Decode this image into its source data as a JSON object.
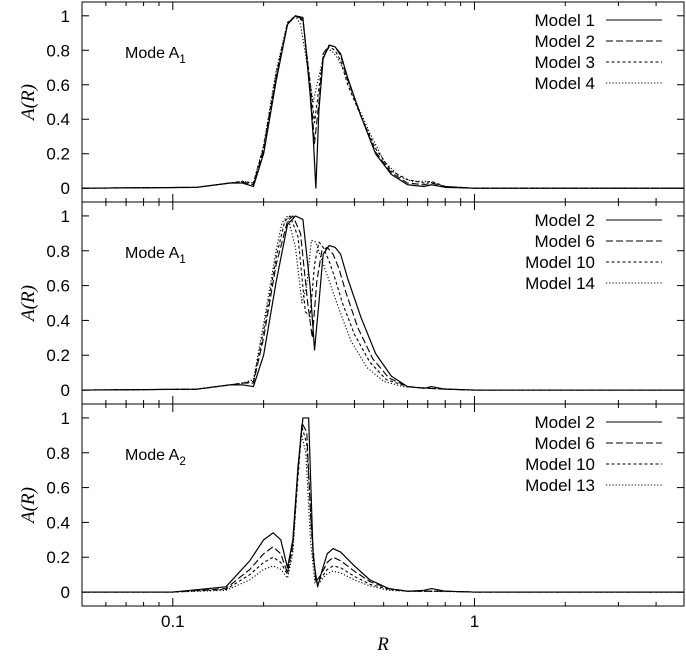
{
  "chart_data": {
    "type": "line",
    "xscale": "log",
    "xlim": [
      0.05,
      4.95
    ],
    "xticks": [
      {
        "value": 0.1,
        "label": "0.1"
      },
      {
        "value": 1,
        "label": "1"
      }
    ],
    "xlabel": "R",
    "ylabel": "A(R)",
    "yticks": [
      0,
      0.2,
      0.4,
      0.6,
      0.8,
      1
    ],
    "ytick_labels": [
      "0",
      "0.2",
      "0.4",
      "0.6",
      "0.8",
      "1"
    ],
    "panels": [
      {
        "label": "Mode A",
        "label_sub": "1",
        "ylim": [
          -0.08,
          1.08
        ],
        "series": [
          {
            "name": "Model 1",
            "style": "solid",
            "x": [
              0.05,
              0.12,
              0.155,
              0.17,
              0.185,
              0.2,
              0.22,
              0.24,
              0.255,
              0.27,
              0.285,
              0.292,
              0.298,
              0.305,
              0.315,
              0.33,
              0.345,
              0.36,
              0.38,
              0.42,
              0.47,
              0.53,
              0.6,
              0.68,
              0.72,
              0.8,
              1.0,
              4.95
            ],
            "y": [
              0,
              0.005,
              0.03,
              0.03,
              0.01,
              0.2,
              0.62,
              0.95,
              1.0,
              0.99,
              0.55,
              0.3,
              0.0,
              0.45,
              0.75,
              0.83,
              0.82,
              0.78,
              0.64,
              0.42,
              0.2,
              0.08,
              0.02,
              0.01,
              0.02,
              0.005,
              0.0,
              0
            ]
          },
          {
            "name": "Model 2",
            "style": "dashed",
            "x": [
              0.05,
              0.12,
              0.155,
              0.17,
              0.185,
              0.2,
              0.22,
              0.24,
              0.255,
              0.27,
              0.285,
              0.295,
              0.305,
              0.315,
              0.33,
              0.345,
              0.36,
              0.38,
              0.42,
              0.47,
              0.53,
              0.6,
              0.68,
              0.72,
              0.8,
              1.0,
              4.95
            ],
            "y": [
              0,
              0.005,
              0.03,
              0.035,
              0.02,
              0.22,
              0.64,
              0.95,
              1.0,
              0.98,
              0.6,
              0.26,
              0.5,
              0.78,
              0.83,
              0.82,
              0.77,
              0.63,
              0.42,
              0.21,
              0.09,
              0.03,
              0.02,
              0.03,
              0.01,
              0.0,
              0
            ]
          },
          {
            "name": "Model 3",
            "style": "fine-dashed",
            "x": [
              0.05,
              0.12,
              0.155,
              0.17,
              0.185,
              0.2,
              0.22,
              0.24,
              0.255,
              0.27,
              0.285,
              0.295,
              0.305,
              0.315,
              0.33,
              0.345,
              0.36,
              0.38,
              0.42,
              0.47,
              0.53,
              0.6,
              0.68,
              0.72,
              0.8,
              1.0,
              4.95
            ],
            "y": [
              0,
              0.005,
              0.03,
              0.04,
              0.03,
              0.24,
              0.66,
              0.96,
              1.0,
              0.97,
              0.62,
              0.38,
              0.58,
              0.76,
              0.82,
              0.8,
              0.74,
              0.6,
              0.42,
              0.23,
              0.1,
              0.05,
              0.03,
              0.04,
              0.01,
              0.0,
              0
            ]
          },
          {
            "name": "Model 4",
            "style": "dotted",
            "x": [
              0.05,
              0.12,
              0.155,
              0.17,
              0.185,
              0.2,
              0.22,
              0.24,
              0.255,
              0.265,
              0.28,
              0.292,
              0.305,
              0.32,
              0.335,
              0.35,
              0.37,
              0.4,
              0.45,
              0.5,
              0.56,
              0.62,
              0.7,
              0.8,
              1.0,
              4.95
            ],
            "y": [
              0,
              0.005,
              0.03,
              0.04,
              0.03,
              0.25,
              0.68,
              0.96,
              1.0,
              0.95,
              0.7,
              0.5,
              0.65,
              0.8,
              0.8,
              0.76,
              0.68,
              0.52,
              0.32,
              0.16,
              0.07,
              0.04,
              0.04,
              0.01,
              0.0,
              0
            ]
          }
        ]
      },
      {
        "label": "Mode A",
        "label_sub": "1",
        "ylim": [
          -0.08,
          1.08
        ],
        "series": [
          {
            "name": "Model 2",
            "style": "solid",
            "x": [
              0.05,
              0.12,
              0.155,
              0.17,
              0.185,
              0.2,
              0.22,
              0.24,
              0.255,
              0.27,
              0.285,
              0.295,
              0.305,
              0.315,
              0.33,
              0.345,
              0.36,
              0.38,
              0.42,
              0.47,
              0.53,
              0.6,
              0.68,
              0.72,
              0.8,
              1.0,
              4.95
            ],
            "y": [
              0,
              0.005,
              0.03,
              0.03,
              0.02,
              0.2,
              0.62,
              0.95,
              1.0,
              0.98,
              0.6,
              0.23,
              0.5,
              0.78,
              0.83,
              0.82,
              0.78,
              0.64,
              0.42,
              0.21,
              0.08,
              0.02,
              0.01,
              0.02,
              0.005,
              0.0,
              0
            ]
          },
          {
            "name": "Model 6",
            "style": "dashed",
            "x": [
              0.05,
              0.12,
              0.155,
              0.17,
              0.185,
              0.2,
              0.22,
              0.24,
              0.25,
              0.265,
              0.28,
              0.29,
              0.3,
              0.312,
              0.325,
              0.34,
              0.355,
              0.375,
              0.41,
              0.46,
              0.52,
              0.6,
              0.7,
              0.8,
              1.0,
              4.95
            ],
            "y": [
              0,
              0.005,
              0.03,
              0.04,
              0.04,
              0.3,
              0.72,
              0.97,
              1.0,
              0.9,
              0.5,
              0.3,
              0.62,
              0.8,
              0.82,
              0.78,
              0.7,
              0.56,
              0.36,
              0.18,
              0.07,
              0.02,
              0.01,
              0.005,
              0.0,
              0
            ]
          },
          {
            "name": "Model 10",
            "style": "fine-dashed",
            "x": [
              0.05,
              0.12,
              0.155,
              0.17,
              0.185,
              0.2,
              0.22,
              0.235,
              0.245,
              0.26,
              0.275,
              0.285,
              0.295,
              0.305,
              0.315,
              0.33,
              0.345,
              0.365,
              0.4,
              0.45,
              0.51,
              0.6,
              0.7,
              1.0,
              4.95
            ],
            "y": [
              0,
              0.005,
              0.03,
              0.04,
              0.05,
              0.34,
              0.76,
              0.97,
              1.0,
              0.88,
              0.45,
              0.42,
              0.72,
              0.85,
              0.82,
              0.74,
              0.64,
              0.5,
              0.32,
              0.16,
              0.06,
              0.02,
              0.01,
              0.0,
              0
            ]
          },
          {
            "name": "Model 14",
            "style": "dotted",
            "x": [
              0.05,
              0.12,
              0.155,
              0.17,
              0.185,
              0.2,
              0.22,
              0.23,
              0.24,
              0.255,
              0.268,
              0.278,
              0.288,
              0.298,
              0.31,
              0.325,
              0.34,
              0.36,
              0.39,
              0.44,
              0.5,
              0.58,
              0.7,
              1.0,
              4.95
            ],
            "y": [
              0,
              0.005,
              0.03,
              0.04,
              0.06,
              0.38,
              0.8,
              0.96,
              1.0,
              0.82,
              0.5,
              0.6,
              0.86,
              0.85,
              0.76,
              0.66,
              0.56,
              0.44,
              0.28,
              0.13,
              0.05,
              0.02,
              0.01,
              0.0,
              0
            ]
          }
        ]
      },
      {
        "label": "Mode A",
        "label_sub": "2",
        "ylim": [
          -0.08,
          1.08
        ],
        "series": [
          {
            "name": "Model 2",
            "style": "solid",
            "x": [
              0.05,
              0.1,
              0.15,
              0.18,
              0.2,
              0.215,
              0.228,
              0.24,
              0.25,
              0.26,
              0.27,
              0.282,
              0.292,
              0.302,
              0.312,
              0.325,
              0.34,
              0.36,
              0.4,
              0.45,
              0.52,
              0.6,
              0.68,
              0.72,
              0.8,
              1.0,
              4.95
            ],
            "y": [
              0,
              0.0,
              0.03,
              0.18,
              0.3,
              0.34,
              0.3,
              0.14,
              0.3,
              0.72,
              1.0,
              1.0,
              0.2,
              0.03,
              0.12,
              0.22,
              0.25,
              0.23,
              0.15,
              0.07,
              0.02,
              0.005,
              0.01,
              0.02,
              0.005,
              0.0,
              0
            ]
          },
          {
            "name": "Model 6",
            "style": "dashed",
            "x": [
              0.05,
              0.1,
              0.15,
              0.18,
              0.2,
              0.215,
              0.228,
              0.24,
              0.25,
              0.26,
              0.268,
              0.278,
              0.288,
              0.298,
              0.31,
              0.325,
              0.34,
              0.36,
              0.4,
              0.45,
              0.52,
              0.6,
              0.8,
              1.0,
              4.95
            ],
            "y": [
              0,
              0.0,
              0.02,
              0.13,
              0.22,
              0.26,
              0.22,
              0.11,
              0.28,
              0.7,
              0.97,
              0.92,
              0.35,
              0.06,
              0.1,
              0.17,
              0.2,
              0.18,
              0.12,
              0.06,
              0.02,
              0.005,
              0.005,
              0.0,
              0
            ]
          },
          {
            "name": "Model 10",
            "style": "fine-dashed",
            "x": [
              0.05,
              0.1,
              0.15,
              0.18,
              0.2,
              0.215,
              0.228,
              0.24,
              0.25,
              0.26,
              0.268,
              0.278,
              0.288,
              0.298,
              0.31,
              0.325,
              0.34,
              0.36,
              0.4,
              0.45,
              0.52,
              0.6,
              0.8,
              1.0,
              4.95
            ],
            "y": [
              0,
              0.0,
              0.015,
              0.1,
              0.17,
              0.2,
              0.17,
              0.1,
              0.26,
              0.66,
              0.95,
              0.85,
              0.38,
              0.06,
              0.08,
              0.13,
              0.15,
              0.14,
              0.09,
              0.045,
              0.015,
              0.005,
              0.005,
              0.0,
              0
            ]
          },
          {
            "name": "Model 13",
            "style": "dotted",
            "x": [
              0.05,
              0.1,
              0.15,
              0.18,
              0.2,
              0.215,
              0.228,
              0.24,
              0.25,
              0.258,
              0.266,
              0.276,
              0.286,
              0.296,
              0.308,
              0.322,
              0.338,
              0.36,
              0.4,
              0.45,
              0.52,
              0.6,
              0.8,
              1.0,
              4.95
            ],
            "y": [
              0,
              0.0,
              0.01,
              0.07,
              0.13,
              0.15,
              0.13,
              0.08,
              0.22,
              0.6,
              0.92,
              0.8,
              0.3,
              0.05,
              0.06,
              0.1,
              0.12,
              0.11,
              0.07,
              0.035,
              0.01,
              0.005,
              0.003,
              0.0,
              0
            ]
          }
        ]
      }
    ]
  }
}
